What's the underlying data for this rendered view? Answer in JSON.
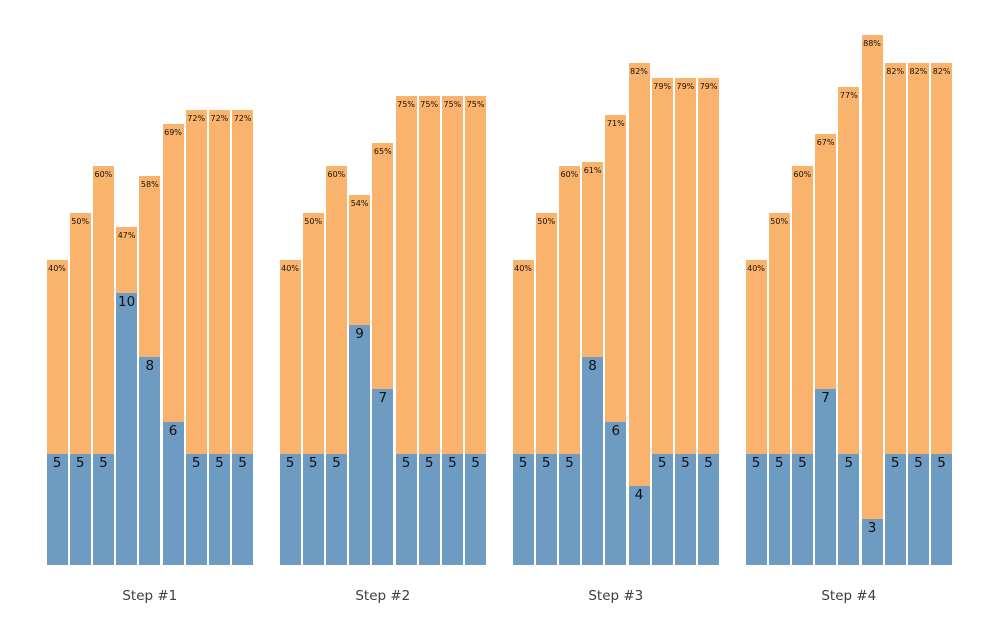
{
  "title": "",
  "colors": {
    "background": "#ffffff",
    "percent_bar": "#F9B36C",
    "count_bar": "#6E9BC2",
    "bar_label": "#111111",
    "step_label": "#3d3d3d"
  },
  "chart_data": {
    "type": "bar",
    "title": "",
    "xlabel": "",
    "ylabel": "",
    "legend": "none",
    "grid": false,
    "axes_visible": false,
    "bars_per_group": 9,
    "groups": [
      {
        "label": "Step #1",
        "percent_values": [
          40,
          50,
          60,
          47,
          58,
          69,
          72,
          72,
          72
        ],
        "percent_labels": [
          "40%",
          "50%",
          "60%",
          "47%",
          "58%",
          "69%",
          "72%",
          "72%",
          "72%"
        ],
        "count_values": [
          5,
          5,
          5,
          10,
          8,
          6,
          5,
          5,
          5
        ],
        "count_labels": [
          "5",
          "5",
          "5",
          "10",
          "8",
          "6",
          "5",
          "5",
          "5"
        ]
      },
      {
        "label": "Step #2",
        "percent_values": [
          40,
          50,
          60,
          54,
          65,
          75,
          75,
          75,
          75
        ],
        "percent_labels": [
          "40%",
          "50%",
          "60%",
          "54%",
          "65%",
          "75%",
          "75%",
          "75%",
          "75%"
        ],
        "count_values": [
          5,
          5,
          5,
          9,
          7,
          5,
          5,
          5,
          5
        ],
        "count_labels": [
          "5",
          "5",
          "5",
          "9",
          "7",
          "5",
          "5",
          "5",
          "5"
        ]
      },
      {
        "label": "Step #3",
        "percent_values": [
          40,
          50,
          60,
          61,
          71,
          82,
          79,
          79,
          79
        ],
        "percent_labels": [
          "40%",
          "50%",
          "60%",
          "61%",
          "71%",
          "82%",
          "79%",
          "79%",
          "79%"
        ],
        "count_values": [
          5,
          5,
          5,
          8,
          6,
          4,
          5,
          5,
          5
        ],
        "count_labels": [
          "5",
          "5",
          "5",
          "8",
          "6",
          "4",
          "5",
          "5",
          "5"
        ]
      },
      {
        "label": "Step #4",
        "percent_values": [
          40,
          50,
          60,
          67,
          77,
          88,
          82,
          82,
          82
        ],
        "percent_labels": [
          "40%",
          "50%",
          "60%",
          "67%",
          "77%",
          "88%",
          "82%",
          "82%",
          "82%"
        ],
        "count_values": [
          5,
          5,
          5,
          7,
          5,
          3,
          5,
          5,
          5
        ],
        "count_labels": [
          "5",
          "5",
          "5",
          "7",
          "5",
          "3",
          "5",
          "5",
          "5"
        ]
      }
    ],
    "series": [
      {
        "name": "percent",
        "color": "#F9B36C",
        "description": "full bar height encodes percentage, % label at top"
      },
      {
        "name": "count",
        "color": "#6E9BC2",
        "description": "blue overlay height encodes count, number label at top"
      }
    ]
  }
}
